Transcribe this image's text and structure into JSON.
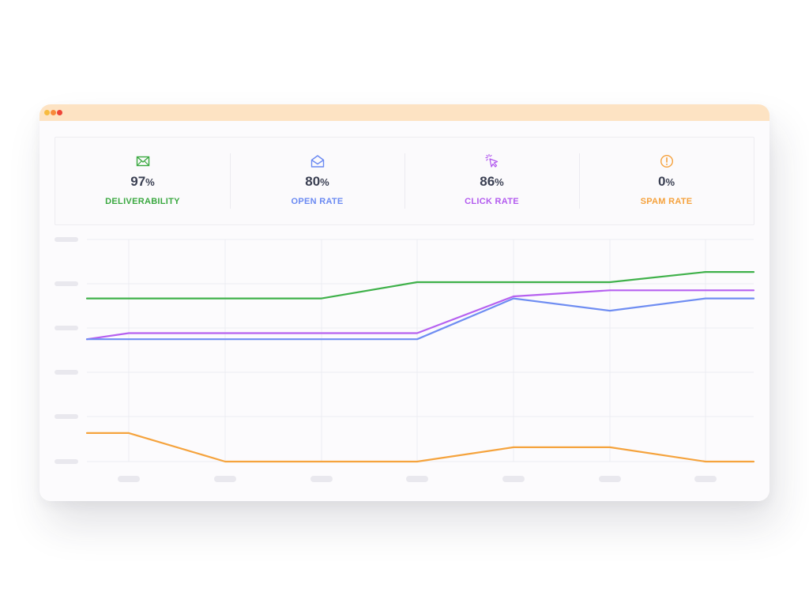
{
  "window": {
    "title_dots": [
      "#f7bb3f",
      "#f7893a",
      "#ee4437"
    ]
  },
  "stats": [
    {
      "icon": "envelope-icon",
      "value": "97",
      "unit": "%",
      "label": "DELIVERABILITY",
      "color": "#3aa840"
    },
    {
      "icon": "open-envelope-icon",
      "value": "80",
      "unit": "%",
      "label": "OPEN RATE",
      "color": "#6b8af2"
    },
    {
      "icon": "cursor-click-icon",
      "value": "86",
      "unit": "%",
      "label": "CLICK RATE",
      "color": "#b35bef"
    },
    {
      "icon": "alert-circle-icon",
      "value": "0",
      "unit": "%",
      "label": "SPAM RATE",
      "color": "#f5a13c"
    }
  ],
  "chart_data": {
    "type": "line",
    "title": "",
    "xlabel": "",
    "ylabel": "",
    "x": [
      0,
      1,
      2,
      3,
      4,
      5,
      6,
      7,
      8
    ],
    "ylim": [
      0,
      100
    ],
    "grid": true,
    "legend": "none",
    "series": [
      {
        "color": "#3fb14a",
        "values": [
          80,
          80,
          80,
          80,
          88,
          88,
          88,
          93,
          93
        ]
      },
      {
        "color": "#b661f0",
        "values": [
          60,
          63,
          63,
          63,
          63,
          81,
          84,
          84,
          84
        ]
      },
      {
        "color": "#6f8df2",
        "values": [
          60,
          60,
          60,
          60,
          60,
          80,
          74,
          80,
          80
        ]
      },
      {
        "color": "#f5a33d",
        "values": [
          14,
          14,
          0,
          0,
          0,
          7,
          7,
          0,
          0
        ]
      }
    ]
  }
}
